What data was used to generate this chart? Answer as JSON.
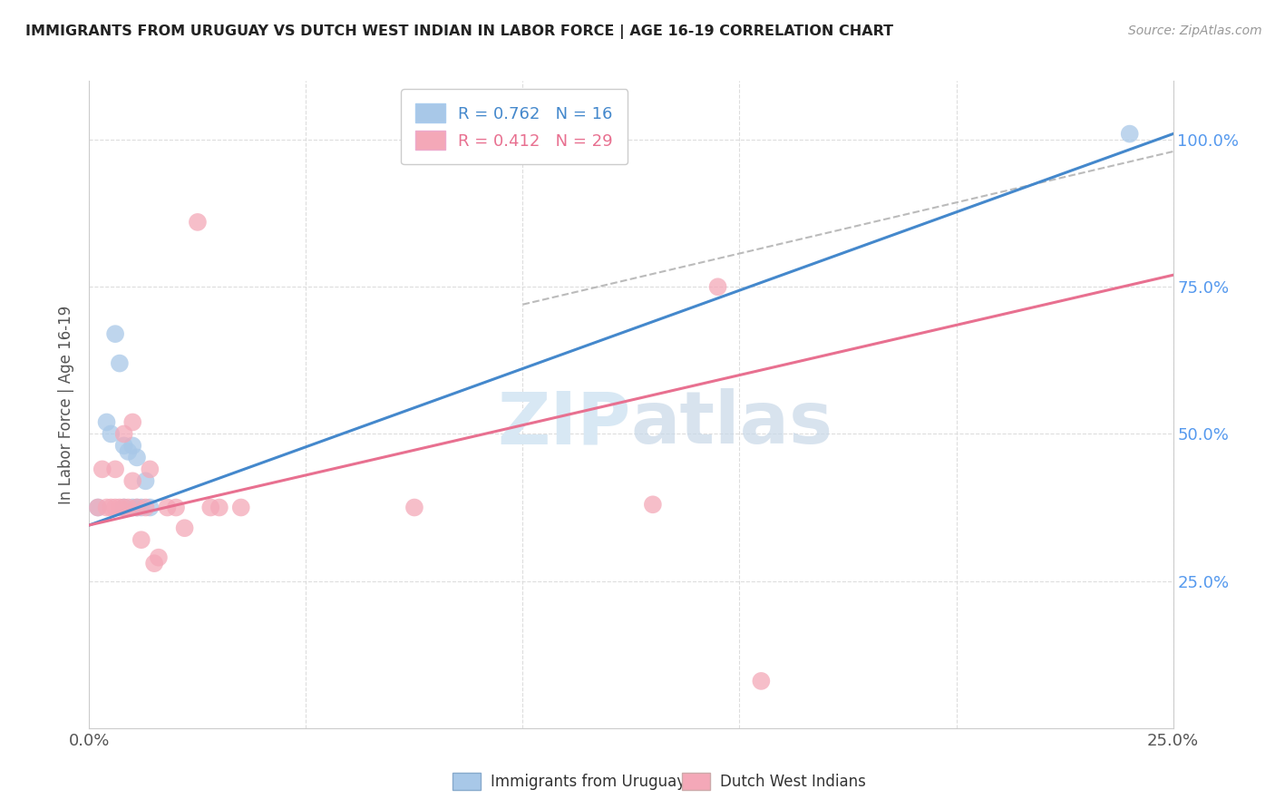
{
  "title": "IMMIGRANTS FROM URUGUAY VS DUTCH WEST INDIAN IN LABOR FORCE | AGE 16-19 CORRELATION CHART",
  "source": "Source: ZipAtlas.com",
  "ylabel": "In Labor Force | Age 16-19",
  "xlim": [
    0.0,
    0.25
  ],
  "ylim": [
    0.0,
    1.1
  ],
  "xticks": [
    0.0,
    0.05,
    0.1,
    0.15,
    0.2,
    0.25
  ],
  "xticklabels": [
    "0.0%",
    "",
    "",
    "",
    "",
    "25.0%"
  ],
  "yticks": [
    0.0,
    0.25,
    0.5,
    0.75,
    1.0
  ],
  "yticklabels_right": [
    "",
    "25.0%",
    "50.0%",
    "75.0%",
    "100.0%"
  ],
  "legend_blue_r": "R = 0.762",
  "legend_blue_n": "N = 16",
  "legend_pink_r": "R = 0.412",
  "legend_pink_n": "N = 29",
  "blue_dot_color": "#a8c8e8",
  "pink_dot_color": "#f4a8b8",
  "blue_line_color": "#4488cc",
  "pink_line_color": "#e87090",
  "dash_line_color": "#bbbbbb",
  "watermark_color": "#d8e8f4",
  "ylabel_color": "#555555",
  "right_tick_color": "#5599ee",
  "title_color": "#222222",
  "source_color": "#999999",
  "grid_color": "#dddddd",
  "uruguay_x": [
    0.002,
    0.004,
    0.005,
    0.006,
    0.007,
    0.008,
    0.008,
    0.009,
    0.01,
    0.01,
    0.011,
    0.011,
    0.012,
    0.013,
    0.014,
    0.24
  ],
  "uruguay_y": [
    0.375,
    0.52,
    0.5,
    0.67,
    0.62,
    0.48,
    0.375,
    0.47,
    0.375,
    0.48,
    0.375,
    0.46,
    0.375,
    0.42,
    0.375,
    1.01
  ],
  "dutch_x": [
    0.002,
    0.003,
    0.004,
    0.005,
    0.006,
    0.006,
    0.007,
    0.008,
    0.008,
    0.009,
    0.01,
    0.01,
    0.011,
    0.012,
    0.013,
    0.014,
    0.015,
    0.016,
    0.018,
    0.02,
    0.022,
    0.025,
    0.028,
    0.03,
    0.035,
    0.075,
    0.13,
    0.145,
    0.155
  ],
  "dutch_y": [
    0.375,
    0.44,
    0.375,
    0.375,
    0.375,
    0.44,
    0.375,
    0.375,
    0.5,
    0.375,
    0.42,
    0.52,
    0.375,
    0.32,
    0.375,
    0.44,
    0.28,
    0.29,
    0.375,
    0.375,
    0.34,
    0.86,
    0.375,
    0.375,
    0.375,
    0.375,
    0.38,
    0.75,
    0.08
  ],
  "blue_line_x": [
    0.0,
    0.25
  ],
  "blue_line_y": [
    0.345,
    1.01
  ],
  "pink_line_x": [
    0.0,
    0.25
  ],
  "pink_line_y": [
    0.345,
    0.77
  ],
  "dash_line_x": [
    0.1,
    0.25
  ],
  "dash_line_y": [
    0.72,
    0.98
  ]
}
